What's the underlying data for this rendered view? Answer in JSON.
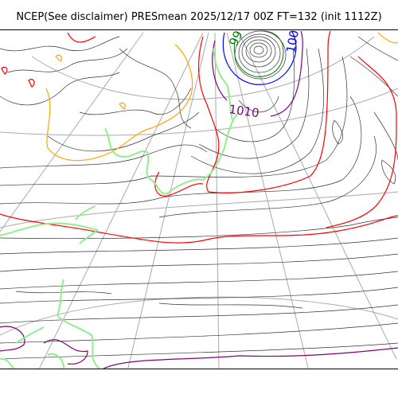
{
  "header": {
    "title": "NCEP(See disclaimer) PRESmean 2025/12/17 00Z FT=132 (init 1112Z)"
  },
  "map": {
    "contour_labels": [
      {
        "text": "1010",
        "color": "#800080"
      },
      {
        "text": "100",
        "color": "#0000ff"
      },
      {
        "text": "99",
        "color": "#008000"
      }
    ],
    "colors": {
      "isobar": "#333333",
      "graticule": "#aaaaaa",
      "coastline": "#90ee90",
      "orange_contour": "#ffa500",
      "red_contour": "#ff0000",
      "purple_contour": "#800080",
      "blue_contour": "#0000ff",
      "green_contour": "#008000"
    }
  }
}
